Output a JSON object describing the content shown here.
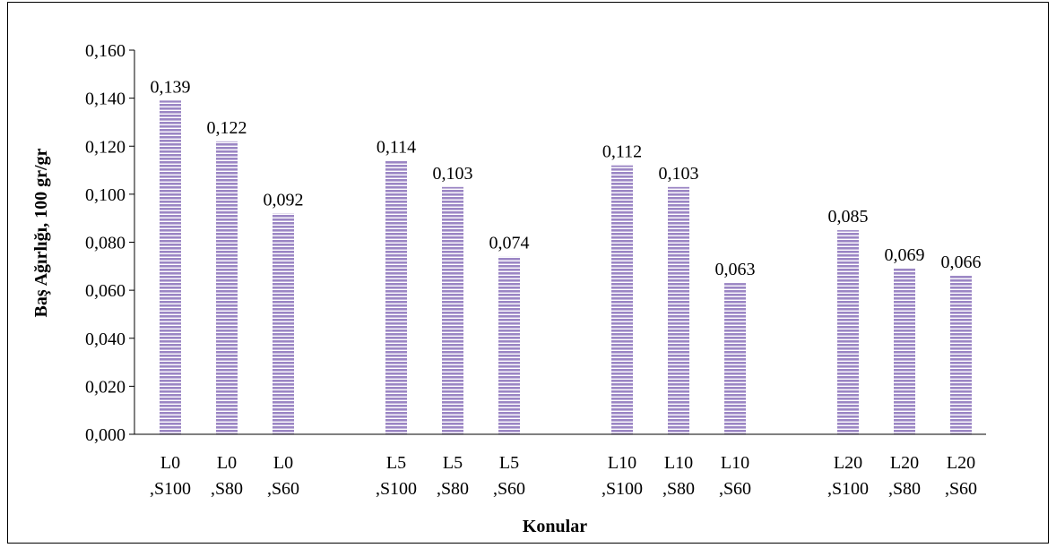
{
  "chart_data": {
    "type": "bar",
    "xlabel": "Konular",
    "ylabel": "Baş Ağırlığı, 100 gr/gr",
    "ylim": [
      0,
      0.16
    ],
    "yticks": [
      "0,000",
      "0,020",
      "0,040",
      "0,060",
      "0,080",
      "0,100",
      "0,120",
      "0,140",
      "0,160"
    ],
    "grid": false,
    "legend": "none",
    "bar_color": "#9b86c4",
    "bar_stripe_color": "#ffffff",
    "groups": [
      {
        "bars": [
          {
            "line1": "L0",
            "line2": ",S100",
            "value": 0.139,
            "label": "0,139"
          },
          {
            "line1": "L0",
            "line2": ",S80",
            "value": 0.122,
            "label": "0,122"
          },
          {
            "line1": "L0",
            "line2": ",S60",
            "value": 0.092,
            "label": "0,092"
          }
        ]
      },
      {
        "bars": [
          {
            "line1": "L5",
            "line2": ",S100",
            "value": 0.114,
            "label": "0,114"
          },
          {
            "line1": "L5",
            "line2": ",S80",
            "value": 0.103,
            "label": "0,103"
          },
          {
            "line1": "L5",
            "line2": ",S60",
            "value": 0.074,
            "label": "0,074"
          }
        ]
      },
      {
        "bars": [
          {
            "line1": "L10",
            "line2": ",S100",
            "value": 0.112,
            "label": "0,112"
          },
          {
            "line1": "L10",
            "line2": ",S80",
            "value": 0.103,
            "label": "0,103"
          },
          {
            "line1": "L10",
            "line2": ",S60",
            "value": 0.063,
            "label": "0,063"
          }
        ]
      },
      {
        "bars": [
          {
            "line1": "L20",
            "line2": ",S100",
            "value": 0.085,
            "label": "0,085"
          },
          {
            "line1": "L20",
            "line2": ",S80",
            "value": 0.069,
            "label": "0,069"
          },
          {
            "line1": "L20",
            "line2": ",S60",
            "value": 0.066,
            "label": "0,066"
          }
        ]
      }
    ]
  }
}
